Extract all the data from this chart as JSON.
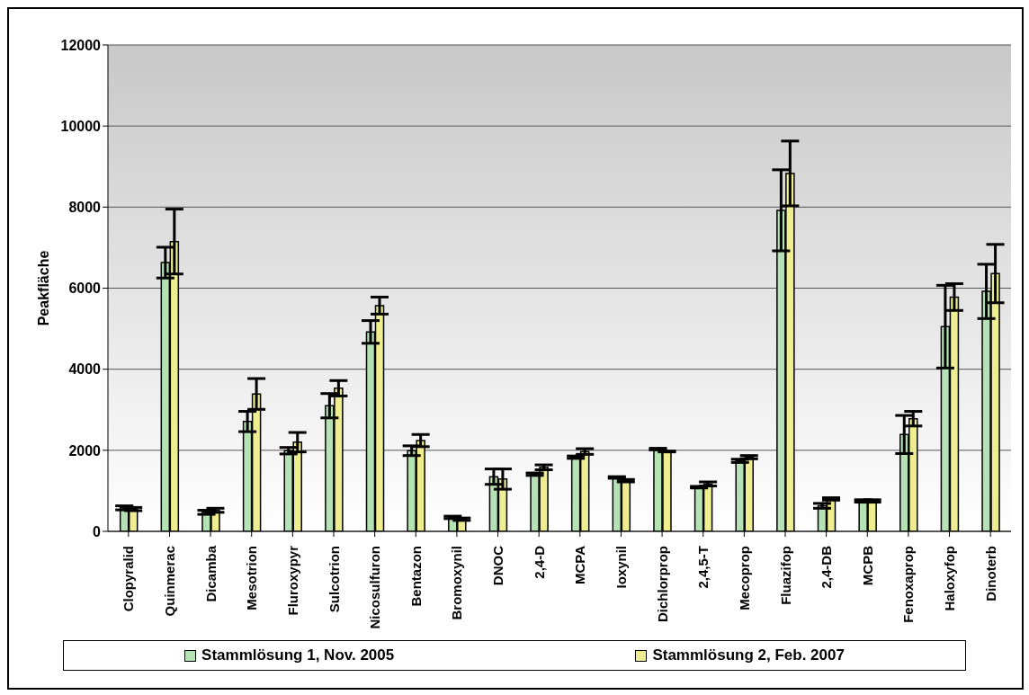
{
  "chart_data": {
    "type": "bar",
    "ylabel": "Peakfläche",
    "categories": [
      "Clopyralid",
      "Quinmerac",
      "Dicamba",
      "Mesotrion",
      "Fluroxypyr",
      "Sulcotrion",
      "Nicosulfuron",
      "Bentazon",
      "Bromoxynil",
      "DNOC",
      "2,4-D",
      "MCPA",
      "Ioxynil",
      "Dichlorprop",
      "2,4,5-T",
      "Mecoprop",
      "Fluazifop",
      "2,4-DB",
      "MCPB",
      "Fenoxaprop",
      "Haloxyfop",
      "Dinoterb"
    ],
    "series": [
      {
        "name": "Stammlösung 1, Nov. 2005",
        "color": "#b4e2b4",
        "values": [
          580,
          6630,
          470,
          2710,
          1990,
          3100,
          4920,
          1990,
          345,
          1350,
          1410,
          1830,
          1330,
          2030,
          1090,
          1740,
          7920,
          630,
          750,
          2390,
          5050,
          5920
        ],
        "errors": [
          50,
          380,
          50,
          250,
          80,
          300,
          280,
          120,
          30,
          190,
          30,
          30,
          20,
          20,
          20,
          40,
          1000,
          60,
          30,
          470,
          1020,
          670
        ]
      },
      {
        "name": "Stammlösung 2, Feb. 2007",
        "color": "#eeee90",
        "values": [
          550,
          7150,
          520,
          3390,
          2200,
          3530,
          5570,
          2240,
          300,
          1290,
          1580,
          1970,
          1250,
          1970,
          1170,
          1830,
          8830,
          800,
          750,
          2780,
          5780,
          6360
        ],
        "errors": [
          40,
          800,
          50,
          380,
          240,
          190,
          210,
          150,
          30,
          250,
          60,
          70,
          30,
          10,
          50,
          40,
          800,
          30,
          30,
          180,
          330,
          720
        ]
      }
    ],
    "ylim": [
      0,
      12000
    ],
    "yticks": [
      0,
      2000,
      4000,
      6000,
      8000,
      10000,
      12000
    ],
    "grid": "y",
    "legend": "bottom"
  }
}
